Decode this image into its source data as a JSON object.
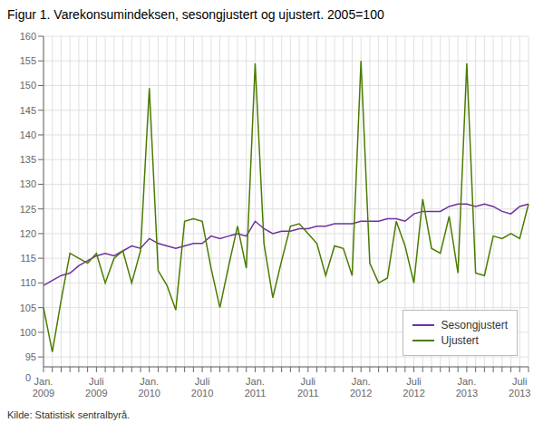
{
  "chart_data": {
    "type": "line",
    "title": "Figur 1. Varekonsumindeksen, sesongjustert og ujustert. 2005=100",
    "footnote": "Kilde: Statistisk sentralbyrå.",
    "annotations": [
      "0"
    ],
    "categories": [
      "Jan.\n2009",
      null,
      null,
      null,
      null,
      null,
      "Juli\n2009",
      null,
      null,
      null,
      null,
      null,
      "Jan.\n2010",
      null,
      null,
      null,
      null,
      null,
      "Juli\n2010",
      null,
      null,
      null,
      null,
      null,
      "Jan.\n2011",
      null,
      null,
      null,
      null,
      null,
      "Juli\n2011",
      null,
      null,
      null,
      null,
      null,
      "Jan.\n2012",
      null,
      null,
      null,
      null,
      null,
      "Juli\n2012",
      null,
      null,
      null,
      null,
      null,
      "Jan.\n2013",
      null,
      null,
      null,
      null,
      null,
      "Juli\n2013",
      null
    ],
    "series": [
      {
        "name": "Sesongjustert",
        "color": "#7030a0",
        "values": [
          109.5,
          110.5,
          111.5,
          112.0,
          113.5,
          114.5,
          115.5,
          116.0,
          115.5,
          116.5,
          117.5,
          117.0,
          119.0,
          118.0,
          117.5,
          117.0,
          117.5,
          118.0,
          118.0,
          119.5,
          119.0,
          119.5,
          120.0,
          119.5,
          122.5,
          121.0,
          120.0,
          120.5,
          120.5,
          121.0,
          121.0,
          121.5,
          121.5,
          122.0,
          122.0,
          122.0,
          122.5,
          122.5,
          122.5,
          123.0,
          123.0,
          122.5,
          124.0,
          124.5,
          124.5,
          124.5,
          125.5,
          126.0,
          126.0,
          125.5,
          126.0,
          125.5,
          124.5,
          124.0,
          125.5,
          126.0
        ]
      },
      {
        "name": "Ujustert",
        "color": "#4a7c00",
        "values": [
          105.0,
          96.0,
          106.5,
          116.0,
          115.0,
          114.0,
          116.0,
          110.0,
          115.0,
          116.5,
          110.0,
          116.5,
          149.5,
          112.5,
          109.5,
          104.5,
          122.5,
          123.0,
          122.5,
          113.0,
          105.0,
          113.5,
          121.5,
          113.0,
          154.5,
          118.0,
          107.0,
          114.5,
          121.5,
          122.0,
          120.0,
          118.0,
          111.5,
          117.5,
          117.0,
          111.5,
          155.0,
          114.0,
          110.0,
          111.0,
          122.5,
          117.5,
          110.0,
          127.0,
          117.0,
          116.0,
          123.5,
          112.0,
          154.5,
          112.0,
          111.5,
          119.5,
          119.0,
          120.0,
          119.0,
          126.0
        ]
      }
    ],
    "ylim": [
      93,
      160
    ],
    "yticks": [
      95,
      100,
      105,
      110,
      115,
      120,
      125,
      130,
      135,
      140,
      145,
      150,
      155,
      160
    ],
    "grid": true,
    "legend": "lower right"
  }
}
